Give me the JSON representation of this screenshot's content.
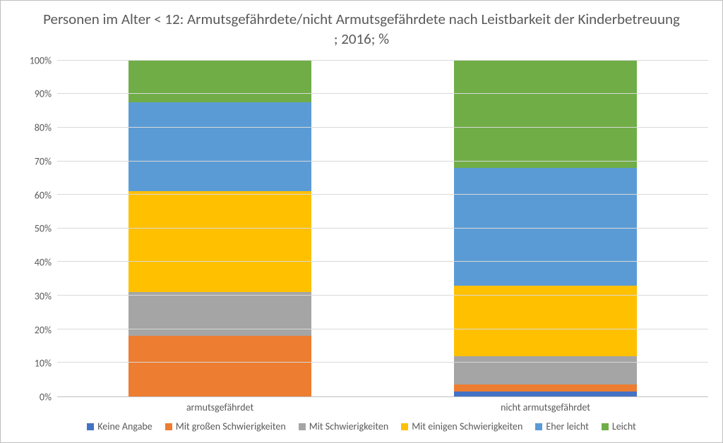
{
  "chart": {
    "type": "stacked-bar-100",
    "title": "Personen im Alter < 12: Armutsgefährdete/nicht Armutsgefährdete nach Leistbarkeit der Kinderbetreuung ; 2016; %",
    "title_fontsize": 21,
    "title_color": "#595959",
    "background_color": "#ffffff",
    "border_color": "#bfbfbf",
    "grid_color": "#d9d9d9",
    "axis_label_color": "#595959",
    "axis_fontsize": 14,
    "ylim": [
      0,
      100
    ],
    "ytick_step": 10,
    "ytick_suffix": "%",
    "categories": [
      "armutsgefährdet",
      "nicht armutsgefährdet"
    ],
    "series": [
      {
        "name": "Keine Angabe",
        "color": "#4472c4",
        "values": [
          0,
          1.5
        ]
      },
      {
        "name": "Mit großen Schwierigkeiten",
        "color": "#ed7d31",
        "values": [
          18,
          2
        ]
      },
      {
        "name": "Mit Schwierigkeiten",
        "color": "#a5a5a5",
        "values": [
          13,
          8.5
        ]
      },
      {
        "name": "Mit einigen Schwierigkeiten",
        "color": "#ffc000",
        "values": [
          30,
          21
        ]
      },
      {
        "name": "Eher leicht",
        "color": "#5b9bd5",
        "values": [
          26.5,
          35
        ]
      },
      {
        "name": "Leicht",
        "color": "#70ad47",
        "values": [
          12.5,
          32
        ]
      }
    ],
    "bar_width_pct": 56
  }
}
